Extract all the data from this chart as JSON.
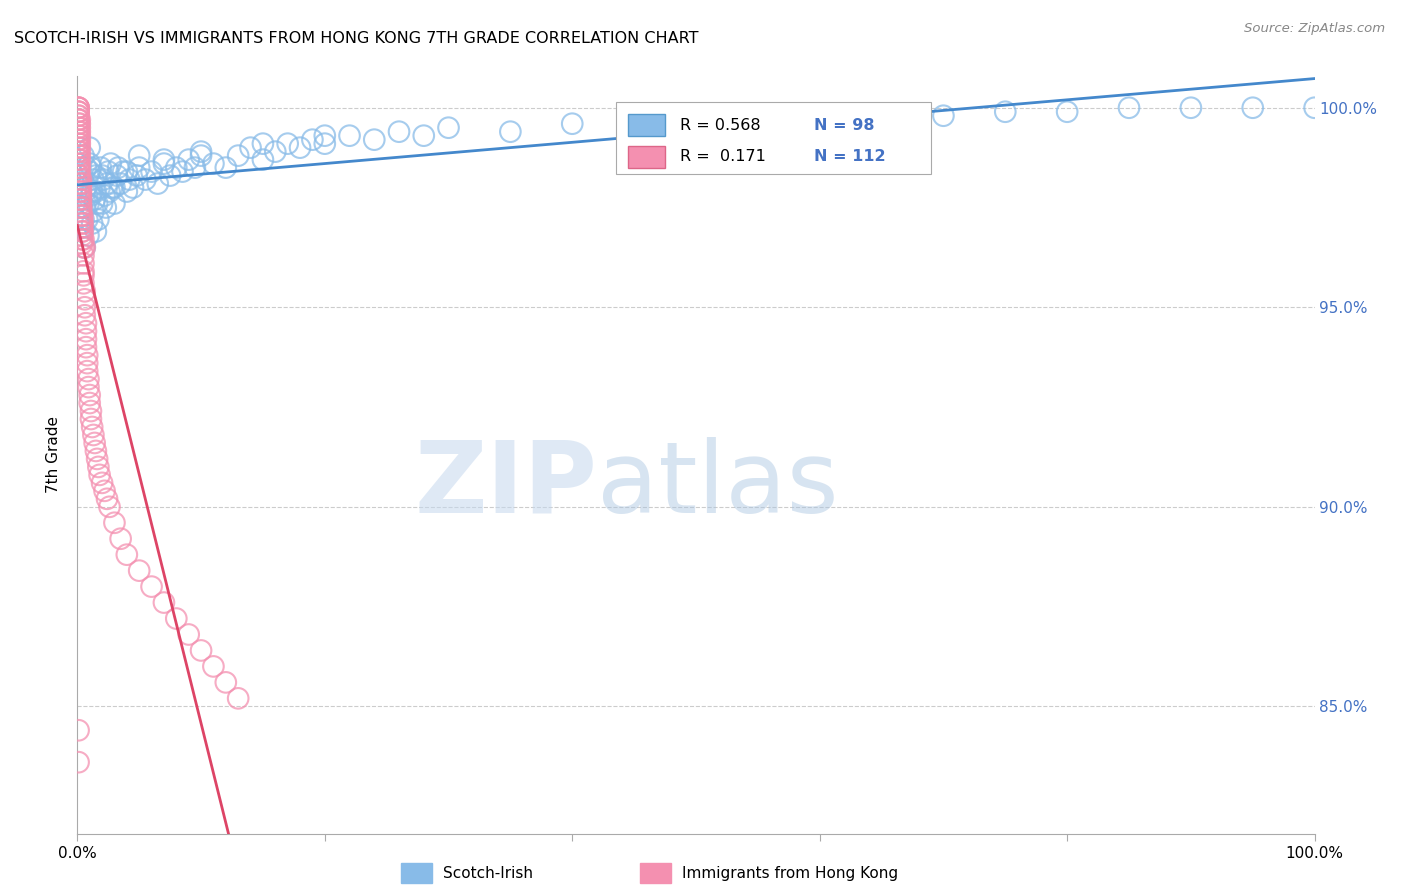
{
  "title": "SCOTCH-IRISH VS IMMIGRANTS FROM HONG KONG 7TH GRADE CORRELATION CHART",
  "source": "Source: ZipAtlas.com",
  "ylabel": "7th Grade",
  "xlim": [
    0.0,
    1.0
  ],
  "ylim": [
    0.818,
    1.008
  ],
  "yticks": [
    0.85,
    0.9,
    0.95,
    1.0
  ],
  "ytick_labels": [
    "85.0%",
    "90.0%",
    "95.0%",
    "100.0%"
  ],
  "xtick_positions": [
    0.0,
    0.2,
    0.4,
    0.6,
    0.8,
    1.0
  ],
  "xtick_labels": [
    "0.0%",
    "",
    "",
    "",
    "",
    "100.0%"
  ],
  "blue_color": "#88BBE8",
  "pink_color": "#F490B0",
  "blue_line_color": "#4488CC",
  "pink_line_color": "#DD4466",
  "legend_blue_R": "0.568",
  "legend_blue_N": "98",
  "legend_pink_R": "0.171",
  "legend_pink_N": "112",
  "legend_label_blue": "Scotch-Irish",
  "legend_label_pink": "Immigrants from Hong Kong",
  "blue_scatter_x": [
    0.003,
    0.004,
    0.005,
    0.005,
    0.006,
    0.006,
    0.007,
    0.007,
    0.008,
    0.008,
    0.009,
    0.009,
    0.01,
    0.01,
    0.011,
    0.011,
    0.012,
    0.012,
    0.013,
    0.013,
    0.014,
    0.015,
    0.015,
    0.016,
    0.017,
    0.018,
    0.019,
    0.02,
    0.021,
    0.022,
    0.023,
    0.024,
    0.025,
    0.026,
    0.027,
    0.028,
    0.03,
    0.032,
    0.033,
    0.035,
    0.037,
    0.04,
    0.042,
    0.045,
    0.048,
    0.05,
    0.055,
    0.06,
    0.065,
    0.07,
    0.075,
    0.08,
    0.085,
    0.09,
    0.095,
    0.1,
    0.11,
    0.12,
    0.13,
    0.14,
    0.15,
    0.16,
    0.17,
    0.18,
    0.19,
    0.2,
    0.22,
    0.24,
    0.26,
    0.28,
    0.3,
    0.35,
    0.4,
    0.45,
    0.5,
    0.55,
    0.6,
    0.65,
    0.7,
    0.75,
    0.8,
    0.85,
    0.9,
    0.95,
    1.0,
    0.003,
    0.005,
    0.007,
    0.01,
    0.015,
    0.02,
    0.03,
    0.04,
    0.05,
    0.07,
    0.1,
    0.15,
    0.2
  ],
  "blue_scatter_y": [
    0.975,
    0.982,
    0.97,
    0.988,
    0.965,
    0.975,
    0.98,
    0.985,
    0.972,
    0.978,
    0.968,
    0.976,
    0.984,
    0.99,
    0.978,
    0.985,
    0.971,
    0.979,
    0.974,
    0.982,
    0.977,
    0.969,
    0.983,
    0.976,
    0.972,
    0.98,
    0.985,
    0.976,
    0.982,
    0.978,
    0.975,
    0.981,
    0.984,
    0.979,
    0.986,
    0.98,
    0.976,
    0.983,
    0.985,
    0.981,
    0.984,
    0.979,
    0.982,
    0.98,
    0.983,
    0.985,
    0.982,
    0.984,
    0.981,
    0.986,
    0.983,
    0.985,
    0.984,
    0.987,
    0.985,
    0.988,
    0.986,
    0.985,
    0.988,
    0.99,
    0.987,
    0.989,
    0.991,
    0.99,
    0.992,
    0.991,
    0.993,
    0.992,
    0.994,
    0.993,
    0.995,
    0.994,
    0.996,
    0.995,
    0.997,
    0.996,
    0.998,
    0.997,
    0.998,
    0.999,
    0.999,
    1.0,
    1.0,
    1.0,
    1.0,
    0.978,
    0.972,
    0.98,
    0.986,
    0.979,
    0.983,
    0.98,
    0.984,
    0.988,
    0.987,
    0.989,
    0.991,
    0.993
  ],
  "pink_scatter_x": [
    0.001,
    0.001,
    0.001,
    0.001,
    0.001,
    0.001,
    0.001,
    0.001,
    0.001,
    0.001,
    0.001,
    0.001,
    0.001,
    0.001,
    0.001,
    0.001,
    0.001,
    0.001,
    0.001,
    0.001,
    0.002,
    0.002,
    0.002,
    0.002,
    0.002,
    0.002,
    0.002,
    0.002,
    0.002,
    0.002,
    0.002,
    0.002,
    0.002,
    0.002,
    0.002,
    0.003,
    0.003,
    0.003,
    0.003,
    0.003,
    0.003,
    0.003,
    0.003,
    0.003,
    0.004,
    0.004,
    0.004,
    0.004,
    0.004,
    0.004,
    0.004,
    0.004,
    0.005,
    0.005,
    0.005,
    0.005,
    0.005,
    0.005,
    0.006,
    0.006,
    0.006,
    0.006,
    0.007,
    0.007,
    0.007,
    0.007,
    0.008,
    0.008,
    0.008,
    0.009,
    0.009,
    0.01,
    0.01,
    0.011,
    0.011,
    0.012,
    0.013,
    0.014,
    0.015,
    0.016,
    0.017,
    0.018,
    0.02,
    0.022,
    0.024,
    0.026,
    0.03,
    0.035,
    0.04,
    0.05,
    0.06,
    0.07,
    0.08,
    0.09,
    0.1,
    0.11,
    0.12,
    0.13,
    0.001,
    0.001,
    0.001,
    0.002,
    0.002,
    0.002,
    0.003,
    0.003,
    0.004,
    0.004,
    0.005,
    0.006,
    0.001,
    0.001
  ],
  "pink_scatter_y": [
    1.0,
    1.0,
    1.0,
    1.0,
    0.999,
    0.999,
    0.999,
    0.998,
    0.998,
    0.997,
    0.997,
    0.996,
    0.995,
    0.994,
    0.993,
    0.992,
    0.991,
    0.99,
    0.989,
    0.988,
    0.997,
    0.996,
    0.995,
    0.994,
    0.993,
    0.992,
    0.991,
    0.99,
    0.989,
    0.988,
    0.987,
    0.986,
    0.985,
    0.984,
    0.983,
    0.982,
    0.981,
    0.98,
    0.979,
    0.978,
    0.977,
    0.976,
    0.975,
    0.974,
    0.973,
    0.972,
    0.971,
    0.97,
    0.969,
    0.968,
    0.967,
    0.966,
    0.965,
    0.963,
    0.961,
    0.959,
    0.958,
    0.956,
    0.954,
    0.952,
    0.95,
    0.948,
    0.946,
    0.944,
    0.942,
    0.94,
    0.938,
    0.936,
    0.934,
    0.932,
    0.93,
    0.928,
    0.926,
    0.924,
    0.922,
    0.92,
    0.918,
    0.916,
    0.914,
    0.912,
    0.91,
    0.908,
    0.906,
    0.904,
    0.902,
    0.9,
    0.896,
    0.892,
    0.888,
    0.884,
    0.88,
    0.876,
    0.872,
    0.868,
    0.864,
    0.86,
    0.856,
    0.852,
    0.987,
    0.985,
    0.983,
    0.981,
    0.979,
    0.977,
    0.975,
    0.973,
    0.971,
    0.969,
    0.967,
    0.965,
    0.844,
    0.836
  ]
}
